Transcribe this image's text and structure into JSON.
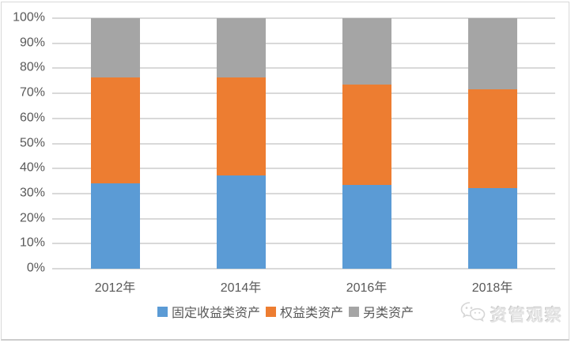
{
  "chart_data": {
    "type": "bar",
    "stacked": true,
    "percent_stacked": true,
    "title": "",
    "xlabel": "",
    "ylabel": "",
    "categories": [
      "2012年",
      "2014年",
      "2016年",
      "2018年"
    ],
    "series": [
      {
        "name": "固定收益类资产",
        "color": "#5B9BD5",
        "values": [
          34.0,
          37.3,
          33.4,
          32.3
        ]
      },
      {
        "name": "权益类资产",
        "color": "#ED7D31",
        "values": [
          42.5,
          39.0,
          40.0,
          39.3
        ]
      },
      {
        "name": "另类资产",
        "color": "#A5A5A5",
        "values": [
          23.5,
          23.7,
          26.6,
          28.4
        ]
      }
    ],
    "y_axis": {
      "min": 0,
      "max": 100,
      "step": 10,
      "tick_labels": [
        "0%",
        "10%",
        "20%",
        "30%",
        "40%",
        "50%",
        "60%",
        "70%",
        "80%",
        "90%",
        "100%"
      ]
    },
    "grid": true,
    "legend_position": "bottom"
  },
  "watermark": {
    "text": "资管观察",
    "icon": "wechat-icon"
  },
  "colors": {
    "gridline": "#D9D9D9",
    "axis_text": "#595959",
    "border": "#D9D9D9",
    "background": "#FFFFFF",
    "watermark_text": "#E3E3E3"
  }
}
